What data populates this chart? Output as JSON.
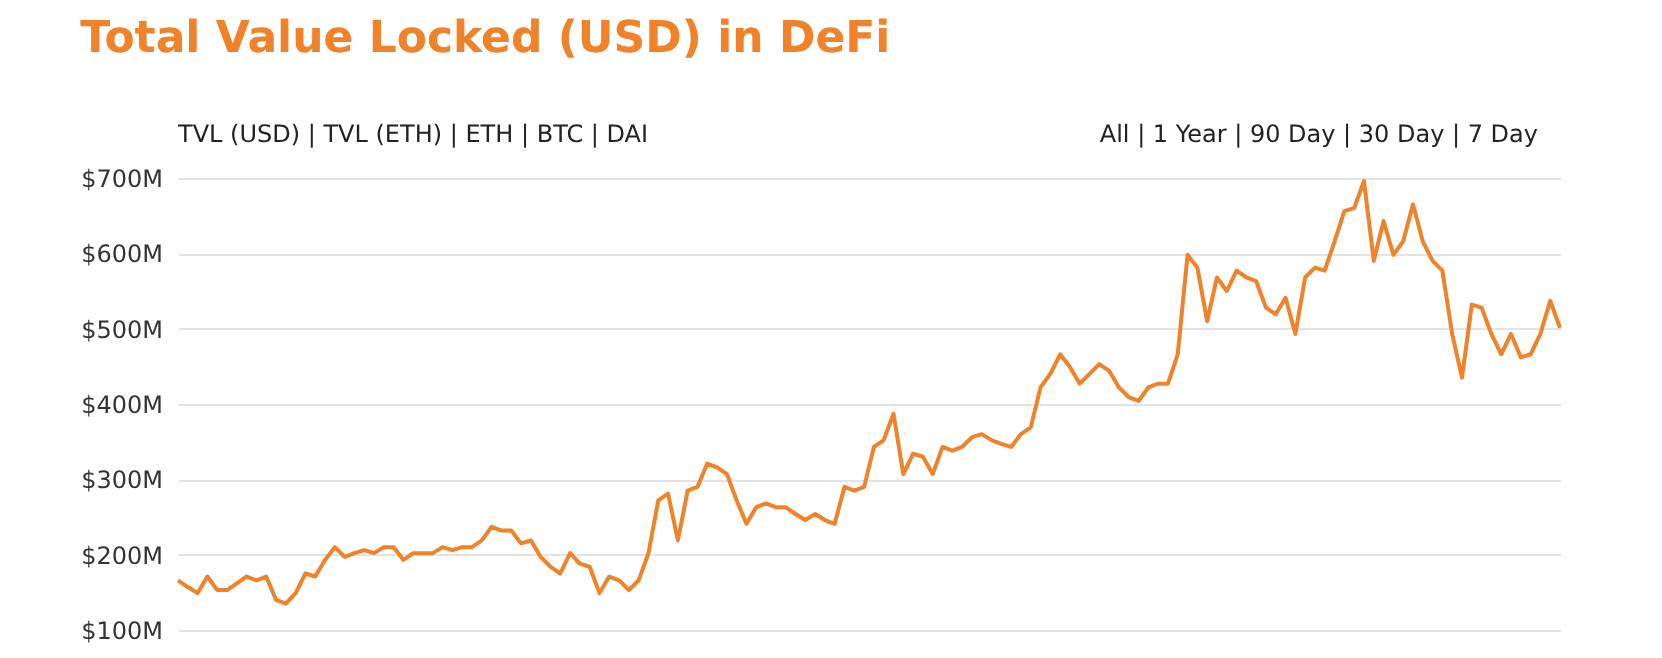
{
  "chart_data": {
    "type": "line",
    "title": "Total Value Locked (USD) in DeFi",
    "annotations": [
      "TVL (USD) | TVL (ETH) | ETH | BTC | DAI",
      "All | 1 Year | 90 Day | 30 Day | 7 Day"
    ],
    "categories": [
      null,
      null,
      null,
      null,
      null,
      null,
      null,
      null,
      null,
      null,
      null,
      null,
      null,
      null,
      null,
      null,
      null,
      null,
      null,
      null,
      null,
      null,
      null,
      null,
      null,
      null,
      null,
      null,
      null,
      null,
      null,
      null,
      null,
      null,
      null,
      null,
      null,
      null,
      null,
      null,
      null,
      null,
      null,
      null,
      null,
      null,
      null,
      null,
      null,
      null,
      null,
      null,
      null,
      null,
      null,
      null,
      null,
      null,
      null,
      null,
      null,
      null,
      null,
      null,
      null,
      null,
      null,
      null,
      null,
      null,
      null,
      null,
      null,
      null,
      null,
      null,
      null,
      null,
      null,
      null,
      null,
      null,
      null,
      null,
      null,
      null,
      null,
      null,
      null,
      null,
      null,
      null,
      null,
      null,
      null,
      null,
      null,
      null,
      null,
      null,
      null,
      null,
      null,
      null,
      null,
      null,
      null,
      null,
      null,
      null,
      null,
      null,
      null,
      null,
      null,
      null,
      null,
      null,
      null,
      null,
      null,
      null,
      null,
      null,
      null,
      null,
      null,
      null,
      null,
      null,
      null,
      null,
      null,
      null,
      null,
      null,
      null,
      null,
      null,
      null,
      null,
      null
    ],
    "series": [
      {
        "color": "#f0822a",
        "values": [
          166,
          157,
          149,
          171,
          153,
          153,
          162,
          171,
          166,
          171,
          140,
          135,
          149,
          175,
          171,
          193,
          210,
          197,
          202,
          206,
          202,
          210,
          210,
          193,
          202,
          202,
          202,
          210,
          206,
          210,
          210,
          219,
          237,
          232,
          232,
          215,
          219,
          197,
          184,
          175,
          202,
          188,
          184,
          149,
          171,
          166,
          153,
          166,
          202,
          272,
          281,
          219,
          285,
          290,
          321,
          316,
          307,
          272,
          241,
          263,
          268,
          263,
          263,
          254,
          246,
          254,
          246,
          241,
          290,
          285,
          290,
          343,
          352,
          387,
          307,
          334,
          330,
          307,
          343,
          338,
          343,
          356,
          360,
          352,
          347,
          343,
          360,
          369,
          422,
          440,
          466,
          449,
          427,
          440,
          453,
          444,
          422,
          409,
          404,
          422,
          427,
          427,
          466,
          598,
          581,
          510,
          568,
          550,
          577,
          568,
          563,
          528,
          519,
          541,
          493,
          568,
          581,
          577,
          616,
          656,
          660,
          696,
          590,
          643,
          598,
          616,
          665,
          616,
          590,
          577,
          493,
          435,
          532,
          528,
          493,
          466,
          493,
          462,
          466,
          493,
          537,
          501
        ]
      }
    ],
    "ylim": [
      100,
      700
    ],
    "yticks": [
      {
        "value": 100,
        "label": "$100M"
      },
      {
        "value": 200,
        "label": "$200M"
      },
      {
        "value": 300,
        "label": "$300M"
      },
      {
        "value": 400,
        "label": "$400M"
      },
      {
        "value": 500,
        "label": "$500M"
      },
      {
        "value": 600,
        "label": "$600M"
      },
      {
        "value": 700,
        "label": "$700M"
      }
    ],
    "grid": "y",
    "line_style": "solid"
  }
}
